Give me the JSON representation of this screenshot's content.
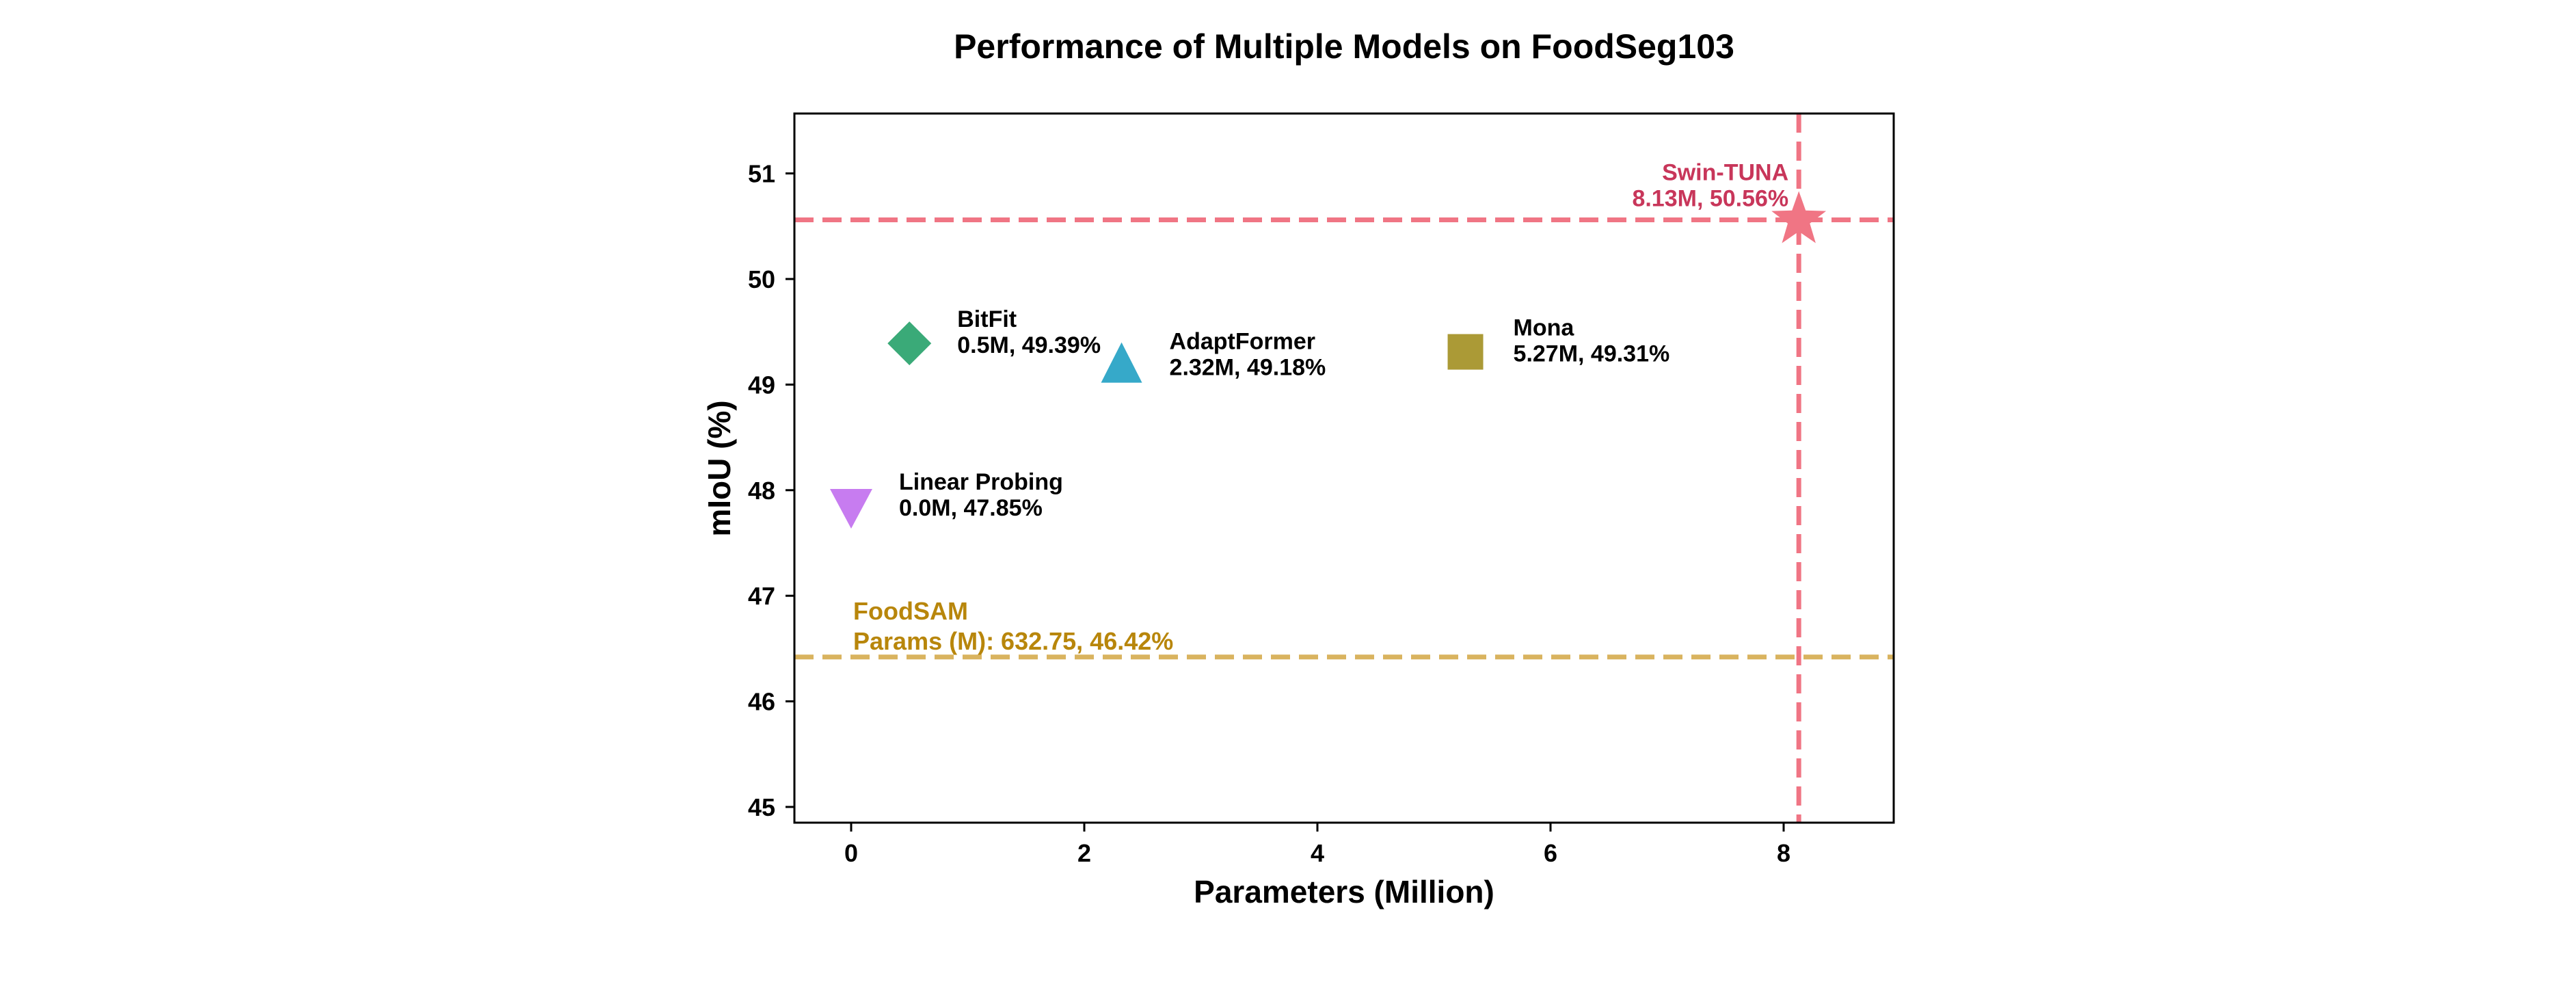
{
  "chart_data": {
    "type": "scatter",
    "title": "Performance of Multiple Models on FoodSeg103",
    "xlabel": "Parameters (Million)",
    "ylabel": "mIoU (%)",
    "xlim": [
      -0.5,
      8.9
    ],
    "ylim": [
      44.85,
      51.55
    ],
    "xticks": [
      0,
      2,
      4,
      6,
      8
    ],
    "yticks": [
      45,
      46,
      47,
      48,
      49,
      50,
      51
    ],
    "grid": false,
    "points": [
      {
        "name": "Linear Probing",
        "x": 0.0,
        "y": 47.85,
        "marker": "triangle-down",
        "color": "#c77cf0",
        "label_line1": "Linear Probing",
        "label_line2": "0.0M, 47.85%",
        "label_color": "#000000"
      },
      {
        "name": "BitFit",
        "x": 0.5,
        "y": 49.39,
        "marker": "diamond",
        "color": "#3aaa78",
        "label_line1": "BitFit",
        "label_line2": "0.5M, 49.39%",
        "label_color": "#000000"
      },
      {
        "name": "AdaptFormer",
        "x": 2.32,
        "y": 49.18,
        "marker": "triangle-up",
        "color": "#36a9c9",
        "label_line1": "AdaptFormer",
        "label_line2": "2.32M, 49.18%",
        "label_color": "#000000"
      },
      {
        "name": "Mona",
        "x": 5.27,
        "y": 49.31,
        "marker": "square",
        "color": "#ab9a36",
        "label_line1": "Mona",
        "label_line2": "5.27M, 49.31%",
        "label_color": "#000000"
      },
      {
        "name": "Swin-TUNA",
        "x": 8.13,
        "y": 50.56,
        "marker": "star",
        "color": "#f07584",
        "label_line1": "Swin-TUNA",
        "label_line2": "8.13M, 50.56%",
        "label_color": "#c8365a"
      }
    ],
    "reference_lines": [
      {
        "name": "FoodSAM",
        "orientation": "horizontal",
        "y": 46.42,
        "color": "#d9b35f",
        "label_line1": "FoodSAM",
        "label_line2": "Params (M): 632.75, 46.42%",
        "label_color": "#b8860b"
      },
      {
        "name": "Swin-TUNA-y",
        "orientation": "horizontal",
        "y": 50.56,
        "color": "#f07584"
      },
      {
        "name": "Swin-TUNA-x",
        "orientation": "vertical",
        "x": 8.13,
        "color": "#f07584"
      }
    ]
  }
}
